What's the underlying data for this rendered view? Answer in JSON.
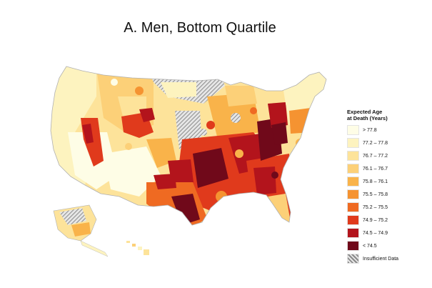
{
  "title": "A. Men, Bottom Quartile",
  "legend": {
    "title_line1": "Expected Age",
    "title_line2": "at Death (Years)",
    "items": [
      {
        "label": "> 77.8",
        "color": "#fefde6"
      },
      {
        "label": "77.2 – 77.8",
        "color": "#fdf3bf"
      },
      {
        "label": "76.7 – 77.2",
        "color": "#fde39a"
      },
      {
        "label": "76.1 – 76.7",
        "color": "#fcd078"
      },
      {
        "label": "75.8 – 76.1",
        "color": "#f9b34a"
      },
      {
        "label": "75.5 – 75.8",
        "color": "#f59331"
      },
      {
        "label": "75.2 – 75.5",
        "color": "#ef6a22"
      },
      {
        "label": "74.9 – 75.2",
        "color": "#e03a1c"
      },
      {
        "label": "74.5 – 74.9",
        "color": "#b3141c"
      },
      {
        "label": "< 74.5",
        "color": "#70091a"
      },
      {
        "label": "Insufficient Data",
        "color": "hatch"
      }
    ]
  }
}
